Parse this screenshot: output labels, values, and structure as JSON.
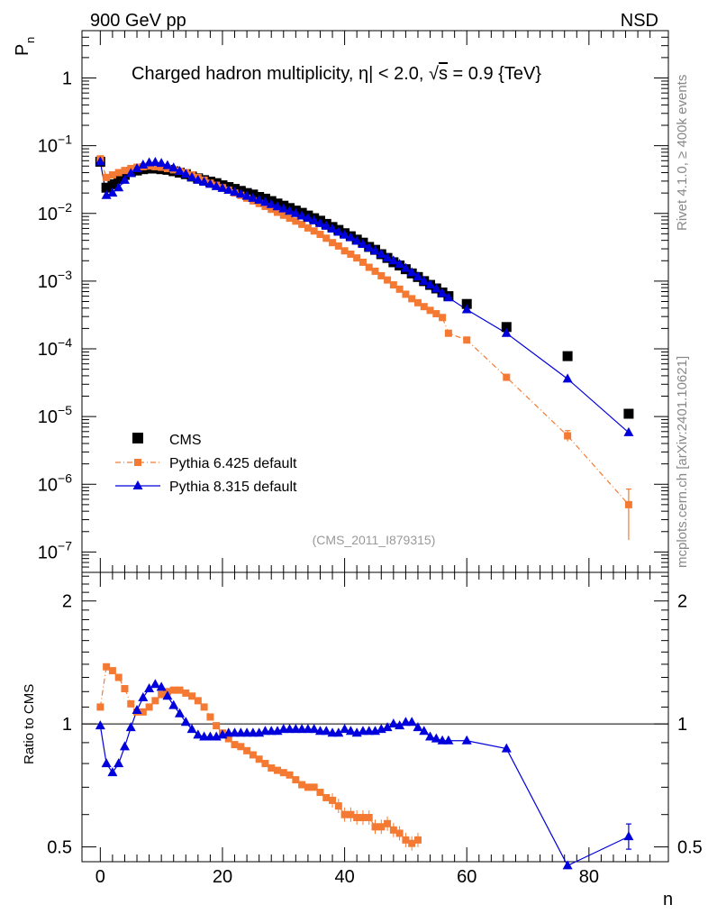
{
  "header": {
    "left": "900 GeV pp",
    "right": "NSD"
  },
  "side_labels": {
    "rivet": "Rivet 4.1.0, ≥ 400k events",
    "mcplots": "mcplots.cern.ch [arXiv:2401.10621]"
  },
  "colors": {
    "cms": "#000000",
    "pythia6": "#f47a33",
    "pythia8": "#0000dd"
  },
  "chart_data": [
    {
      "type": "scatter",
      "title": "Charged hadron multiplicity, |η| < 2.0, √s = 0.9 {TeV}",
      "title_parts": {
        "pre": "Charged hadron multiplicity, ",
        "eta": "η",
        "mid": "| < 2.0, ",
        "root": "√",
        "s": "s",
        "post": " = 0.9 {TeV}"
      },
      "ylabel": "P",
      "ylabel_sub": "n",
      "yscale": "log",
      "ylim": [
        5e-08,
        5
      ],
      "xlim": [
        -3,
        93
      ],
      "analysis_tag": "(CMS_2011_I879315)",
      "ytick_labels": [
        {
          "value": 1,
          "mant": "1",
          "exp": ""
        },
        {
          "value": 0.1,
          "mant": "10",
          "exp": "−1"
        },
        {
          "value": 0.01,
          "mant": "10",
          "exp": "−2"
        },
        {
          "value": 0.001,
          "mant": "10",
          "exp": "−3"
        },
        {
          "value": 0.0001,
          "mant": "10",
          "exp": "−4"
        },
        {
          "value": 1e-05,
          "mant": "10",
          "exp": "−5"
        },
        {
          "value": 1e-06,
          "mant": "10",
          "exp": "−6"
        },
        {
          "value": 1e-07,
          "mant": "10",
          "exp": "−7"
        }
      ],
      "legend": {
        "position": "bottom-left",
        "entries": [
          "CMS",
          "Pythia 6.425 default",
          "Pythia 8.315 default"
        ]
      },
      "x": [
        0,
        1,
        2,
        3,
        4,
        5,
        6,
        7,
        8,
        9,
        10,
        11,
        12,
        13,
        14,
        15,
        16,
        17,
        18,
        19,
        20,
        21,
        22,
        23,
        24,
        25,
        26,
        27,
        28,
        29,
        30,
        31,
        32,
        33,
        34,
        35,
        36,
        37,
        38,
        39,
        40,
        41,
        42,
        43,
        44,
        45,
        46,
        47,
        48,
        49,
        50,
        51,
        52,
        53,
        54,
        55,
        56,
        57,
        60,
        66.5,
        76.5,
        86.5
      ],
      "series": [
        {
          "name": "CMS",
          "values": [
            0.058,
            0.024,
            0.027,
            0.032,
            0.037,
            0.041,
            0.043,
            0.045,
            0.046,
            0.046,
            0.045,
            0.044,
            0.042,
            0.04,
            0.038,
            0.035,
            0.033,
            0.031,
            0.0295,
            0.028,
            0.026,
            0.0245,
            0.023,
            0.0215,
            0.02,
            0.019,
            0.0175,
            0.0165,
            0.0152,
            0.014,
            0.013,
            0.012,
            0.011,
            0.0102,
            0.0093,
            0.0085,
            0.0078,
            0.007,
            0.0063,
            0.0057,
            0.0051,
            0.0046,
            0.0041,
            0.0037,
            0.0032,
            0.0029,
            0.0025,
            0.0022,
            0.0019,
            0.0017,
            0.0015,
            0.0013,
            0.00115,
            0.001,
            0.00088,
            0.00078,
            0.00068,
            0.0006,
            0.00046,
            0.00021,
            7.8e-05,
            1.1e-05
          ]
        },
        {
          "name": "Pythia 6.425 default",
          "values": [
            0.064,
            0.034,
            0.037,
            0.04,
            0.043,
            0.046,
            0.048,
            0.049,
            0.05,
            0.049,
            0.048,
            0.046,
            0.044,
            0.042,
            0.04,
            0.037,
            0.034,
            0.031,
            0.028,
            0.026,
            0.024,
            0.022,
            0.02,
            0.0185,
            0.0168,
            0.0153,
            0.014,
            0.0127,
            0.0115,
            0.0104,
            0.0094,
            0.0085,
            0.0077,
            0.0069,
            0.0061,
            0.0055,
            0.0049,
            0.0043,
            0.0037,
            0.0033,
            0.0028,
            0.0025,
            0.0022,
            0.0019,
            0.0016,
            0.0014,
            0.0012,
            0.00104,
            0.00088,
            0.00076,
            0.00064,
            0.00055,
            0.00048,
            0.00042,
            0.00037,
            0.00033,
            0.00029,
            0.00017,
            0.000135,
            3.8e-05,
            5.2e-06,
            5e-07
          ]
        },
        {
          "name": "Pythia 8.315 default",
          "values": [
            0.058,
            0.0185,
            0.02,
            0.024,
            0.031,
            0.039,
            0.046,
            0.052,
            0.056,
            0.057,
            0.055,
            0.051,
            0.047,
            0.042,
            0.038,
            0.034,
            0.031,
            0.029,
            0.027,
            0.025,
            0.0235,
            0.022,
            0.0206,
            0.0193,
            0.018,
            0.0168,
            0.0157,
            0.0146,
            0.0136,
            0.0126,
            0.0117,
            0.0108,
            0.01,
            0.0092,
            0.0085,
            0.0078,
            0.0071,
            0.0065,
            0.0059,
            0.0053,
            0.0048,
            0.0044,
            0.0039,
            0.0035,
            0.0031,
            0.0028,
            0.0025,
            0.0022,
            0.002,
            0.00178,
            0.00155,
            0.00134,
            0.00116,
            0.001,
            0.00088,
            0.00077,
            0.00066,
            0.00057,
            0.00038,
            0.00017,
            3.6e-05,
            5.8e-06
          ]
        }
      ]
    },
    {
      "type": "line",
      "ylabel": "Ratio to CMS",
      "xlabel": "n",
      "yscale": "log",
      "ylim": [
        0.46,
        2.35
      ],
      "xlim": [
        -3,
        93
      ],
      "ytick_labels": [
        {
          "value": 2,
          "label": "2"
        },
        {
          "value": 1,
          "label": "1"
        },
        {
          "value": 0.5,
          "label": "0.5"
        }
      ],
      "xtick_labels": [
        {
          "value": 0,
          "label": "0"
        },
        {
          "value": 20,
          "label": "20"
        },
        {
          "value": 40,
          "label": "40"
        },
        {
          "value": 60,
          "label": "60"
        },
        {
          "value": 80,
          "label": "80"
        }
      ],
      "reference_line": 1,
      "series": [
        {
          "name": "Pythia 6.425 default",
          "x": [
            0,
            1,
            2,
            3,
            4,
            5,
            6,
            7,
            8,
            9,
            10,
            11,
            12,
            13,
            14,
            15,
            16,
            17,
            18,
            19,
            20,
            21,
            22,
            23,
            24,
            25,
            26,
            27,
            28,
            29,
            30,
            31,
            32,
            33,
            34,
            35,
            36,
            37,
            38,
            39,
            40,
            41,
            42,
            43,
            44,
            45,
            46,
            47,
            48,
            49,
            50,
            51,
            52
          ],
          "values": [
            1.1,
            1.38,
            1.35,
            1.3,
            1.22,
            1.12,
            1.07,
            1.07,
            1.1,
            1.14,
            1.18,
            1.2,
            1.21,
            1.21,
            1.19,
            1.17,
            1.14,
            1.1,
            1.04,
            0.99,
            0.95,
            0.92,
            0.89,
            0.88,
            0.86,
            0.84,
            0.82,
            0.8,
            0.78,
            0.77,
            0.76,
            0.75,
            0.73,
            0.71,
            0.7,
            0.7,
            0.68,
            0.66,
            0.65,
            0.63,
            0.6,
            0.6,
            0.59,
            0.59,
            0.59,
            0.56,
            0.56,
            0.57,
            0.55,
            0.54,
            0.52,
            0.51,
            0.52
          ]
        },
        {
          "name": "Pythia 8.315 default",
          "x": [
            0,
            1,
            2,
            3,
            4,
            5,
            6,
            7,
            8,
            9,
            10,
            11,
            12,
            13,
            14,
            15,
            16,
            17,
            18,
            19,
            20,
            21,
            22,
            23,
            24,
            25,
            26,
            27,
            28,
            29,
            30,
            31,
            32,
            33,
            34,
            35,
            36,
            37,
            38,
            39,
            40,
            41,
            42,
            43,
            44,
            45,
            46,
            47,
            48,
            49,
            50,
            51,
            52,
            53,
            54,
            55,
            56,
            57,
            60,
            66.5,
            76.5,
            86.5
          ],
          "values": [
            0.99,
            0.8,
            0.76,
            0.8,
            0.88,
            0.98,
            1.08,
            1.16,
            1.22,
            1.25,
            1.23,
            1.17,
            1.11,
            1.06,
            1.01,
            0.97,
            0.94,
            0.93,
            0.93,
            0.93,
            0.94,
            0.95,
            0.95,
            0.95,
            0.95,
            0.95,
            0.95,
            0.96,
            0.96,
            0.96,
            0.97,
            0.97,
            0.97,
            0.97,
            0.97,
            0.97,
            0.96,
            0.96,
            0.95,
            0.95,
            0.97,
            0.96,
            0.95,
            0.96,
            0.96,
            0.96,
            0.97,
            0.98,
            1.0,
            0.99,
            1.01,
            1.01,
            0.98,
            0.96,
            0.93,
            0.92,
            0.91,
            0.91,
            0.91,
            0.87,
            0.45,
            0.53
          ]
        }
      ]
    }
  ]
}
